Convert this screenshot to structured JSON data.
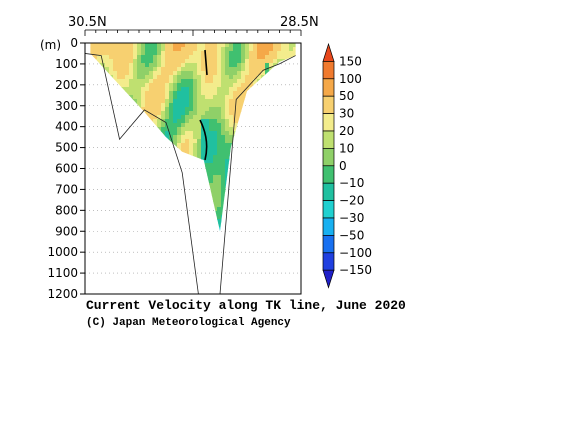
{
  "figure": {
    "title": "Current Velocity along TK line, June 2020",
    "credit": "(C) Japan Meteorological Agency"
  },
  "chart_data": {
    "type": "heatmap",
    "title": "Current Velocity along TK line, June 2020",
    "x_axis": {
      "left_label": "30.5N",
      "right_label": "28.5N",
      "range_latitude": [
        30.5,
        28.5
      ]
    },
    "y_axis": {
      "unit_label": "(m)",
      "ticks": [
        0,
        100,
        200,
        300,
        400,
        500,
        600,
        700,
        800,
        900,
        1000,
        1100,
        1200
      ],
      "range": [
        0,
        1200
      ],
      "inverted": true
    },
    "grid": "dotted horizontal lines every 100 m",
    "colorbar": {
      "levels": [
        150,
        100,
        50,
        30,
        20,
        10,
        0,
        -10,
        -20,
        -30,
        -50,
        -100,
        -150
      ],
      "colors": [
        "#e8481c",
        "#f07a2e",
        "#f5a848",
        "#f7d070",
        "#f3ec8c",
        "#bfe070",
        "#8fd068",
        "#40c070",
        "#20c0a0",
        "#20d0d0",
        "#18b0f0",
        "#1870f0",
        "#2040e0",
        "#2020c8"
      ],
      "placement": "right"
    },
    "bottom_profile_depth_m": [
      [
        30.5,
        50
      ],
      [
        30.35,
        60
      ],
      [
        30.18,
        460
      ],
      [
        29.95,
        320
      ],
      [
        29.75,
        380
      ],
      [
        29.6,
        620
      ],
      [
        29.45,
        1200
      ],
      [
        29.25,
        1200
      ],
      [
        29.1,
        270
      ],
      [
        28.85,
        130
      ],
      [
        28.7,
        100
      ],
      [
        28.55,
        60
      ]
    ],
    "data_extent_depth_m": [
      [
        30.45,
        50
      ],
      [
        29.95,
        330
      ],
      [
        29.75,
        450
      ],
      [
        29.6,
        520
      ],
      [
        29.4,
        560
      ],
      [
        29.25,
        900
      ],
      [
        29.15,
        500
      ],
      [
        29.0,
        230
      ],
      [
        28.7,
        90
      ],
      [
        28.55,
        60
      ]
    ]
  }
}
